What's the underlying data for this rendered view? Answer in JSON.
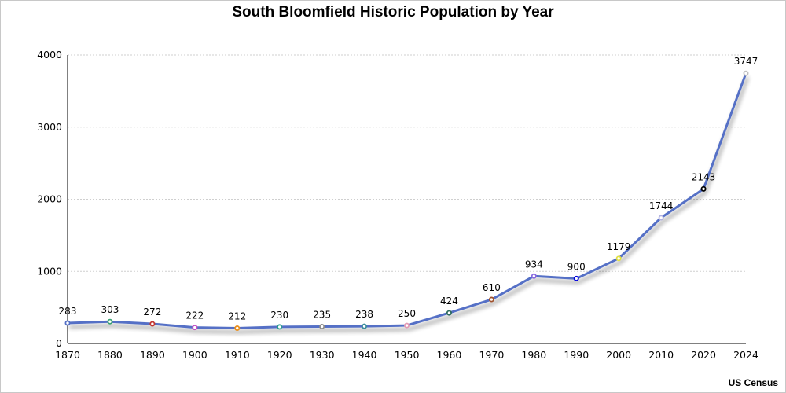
{
  "chart_data": {
    "type": "line",
    "title": "South Bloomfield Historic Population by Year",
    "source": "US Census",
    "xlabel": "",
    "ylabel": "",
    "categories": [
      "1870",
      "1880",
      "1890",
      "1900",
      "1910",
      "1920",
      "1930",
      "1940",
      "1950",
      "1960",
      "1970",
      "1980",
      "1990",
      "2000",
      "2010",
      "2020",
      "2024"
    ],
    "series": [
      {
        "name": "Population",
        "color": "#5470c6",
        "values": [
          283,
          303,
          272,
          222,
          212,
          230,
          235,
          238,
          250,
          424,
          610,
          934,
          900,
          1179,
          1744,
          2143,
          3747
        ],
        "marker_colors": [
          "#5470c6",
          "#3ba272",
          "#c23531",
          "#c44dc4",
          "#ea8f1c",
          "#2a9d8f",
          "#8c8c8c",
          "#3c8d9c",
          "#e39ab4",
          "#2e6b5e",
          "#a0522d",
          "#8a6be0",
          "#0000dd",
          "#e0e040",
          "#b0b0e0",
          "#000000",
          "#c0c0c0"
        ]
      }
    ],
    "ylim": [
      0,
      4000
    ],
    "yticks": [
      0,
      1000,
      2000,
      3000,
      4000
    ],
    "grid": true,
    "data_labels": true
  }
}
